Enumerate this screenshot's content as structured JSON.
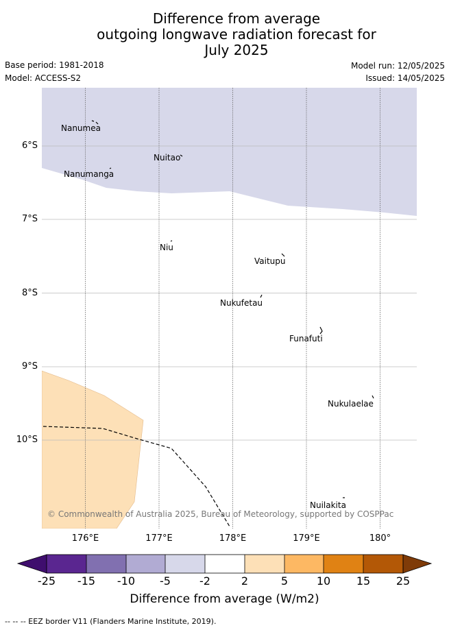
{
  "title": {
    "line1": "Difference from average",
    "line2": "outgoing longwave radiation forecast for",
    "line3": "July 2025"
  },
  "meta": {
    "base_period": "Base period: 1981-2018",
    "model": "Model: ACCESS-S2",
    "model_run": "Model run: 12/05/2025",
    "issued": "Issued: 14/05/2025"
  },
  "map": {
    "lat_labels": [
      "6°S",
      "7°S",
      "8°S",
      "9°S",
      "10°S"
    ],
    "lon_labels": [
      "176°E",
      "177°E",
      "178°E",
      "179°E",
      "180°"
    ],
    "islands": [
      {
        "name": "Nanumea"
      },
      {
        "name": "Nuitao"
      },
      {
        "name": "Nanumanga"
      },
      {
        "name": "Niu"
      },
      {
        "name": "Vaitupu"
      },
      {
        "name": "Nukufetau"
      },
      {
        "name": "Funafuti"
      },
      {
        "name": "Nukulaelae"
      },
      {
        "name": "Nuilakita"
      }
    ],
    "copyright": "© Commonwealth of Australia 2025, Bureau of Meteorology, supported by COSPPac",
    "colors": {
      "region_light_purple": "#d7d8ea",
      "region_light_orange": "#fde0b7",
      "eez_border": "#000000"
    }
  },
  "colorbar": {
    "ticks": [
      "-25",
      "-15",
      "-10",
      "-5",
      "-2",
      "2",
      "5",
      "10",
      "15",
      "25"
    ],
    "colors": [
      "#3f0e6e",
      "#5a2690",
      "#8170b0",
      "#b1abd3",
      "#d7d8ea",
      "#ffffff",
      "#fde0b7",
      "#fdb863",
      "#e08214",
      "#b35806",
      "#7f3b08"
    ],
    "title": "Difference from average (W/m2)"
  },
  "footnote": "-- -- -- EEZ border V11 (Flanders Marine Institute, 2019)."
}
